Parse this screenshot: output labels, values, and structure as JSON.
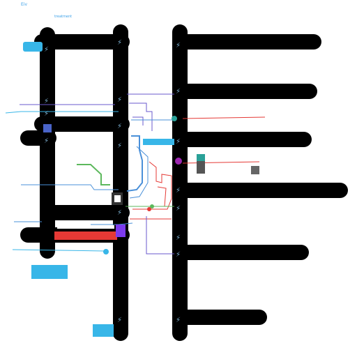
{
  "header": {
    "corner_label": "Eiv",
    "caption": "treatment"
  },
  "colors": {
    "bar": "#000000",
    "blue": "#4a90d9",
    "purple": "#6a5acd",
    "red": "#e53935",
    "green": "#5cb85c",
    "cyan": "#38b6e8",
    "teal": "#2aa198",
    "violet": "#9c27b0"
  },
  "icons": [
    "lightning-icon",
    "node-icon",
    "device-icon",
    "plug-icon"
  ]
}
